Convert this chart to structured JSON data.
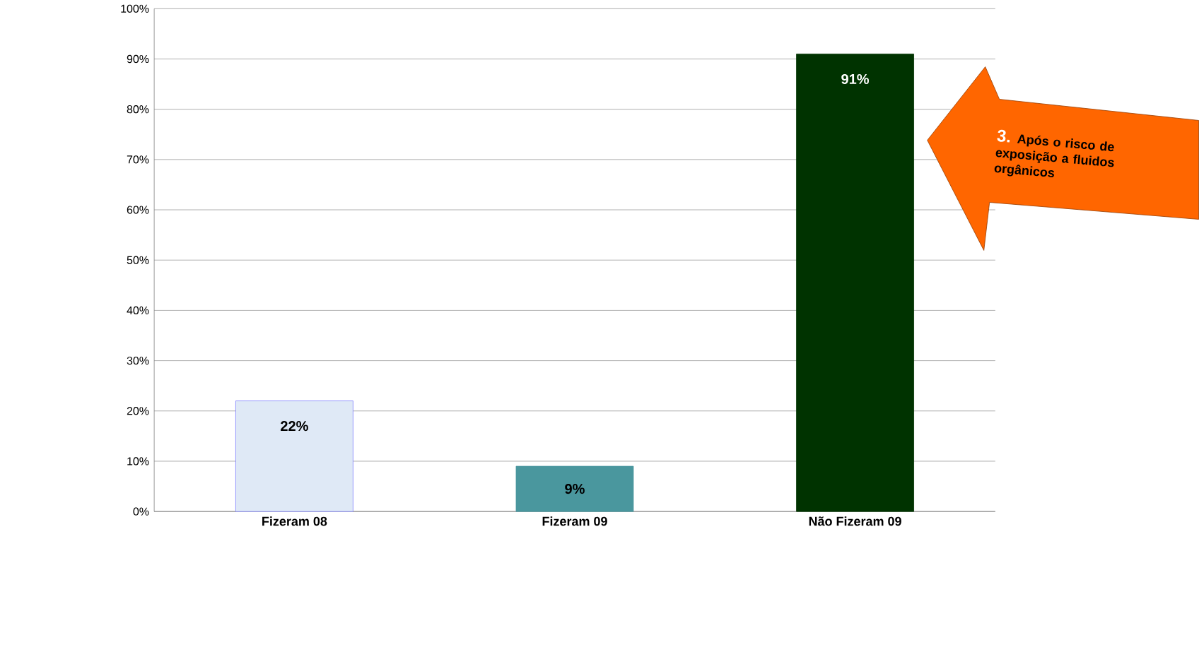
{
  "chart_data": {
    "type": "bar",
    "categories": [
      "Fizeram 08",
      "Fizeram 09",
      "Não Fizeram 09"
    ],
    "values": [
      22,
      9,
      91
    ],
    "colors": [
      "#dfe9f6",
      "#4a979e",
      "#003300"
    ],
    "value_labels": [
      "22%",
      "9%",
      "91%"
    ],
    "ylim": [
      0,
      100
    ],
    "yticks": [
      {
        "value": 0,
        "label": "0%"
      },
      {
        "value": 10,
        "label": "10%"
      },
      {
        "value": 20,
        "label": "20%"
      },
      {
        "value": 30,
        "label": "30%"
      },
      {
        "value": 40,
        "label": "40%"
      },
      {
        "value": 50,
        "label": "50%"
      },
      {
        "value": 60,
        "label": "60%"
      },
      {
        "value": 70,
        "label": "70%"
      },
      {
        "value": 80,
        "label": "80%"
      },
      {
        "value": 90,
        "label": "90%"
      },
      {
        "value": 100,
        "label": "100%"
      }
    ],
    "grid": "y",
    "annotations": [
      "3.",
      "Após o risco de exposição a fluidos orgânicos"
    ]
  }
}
